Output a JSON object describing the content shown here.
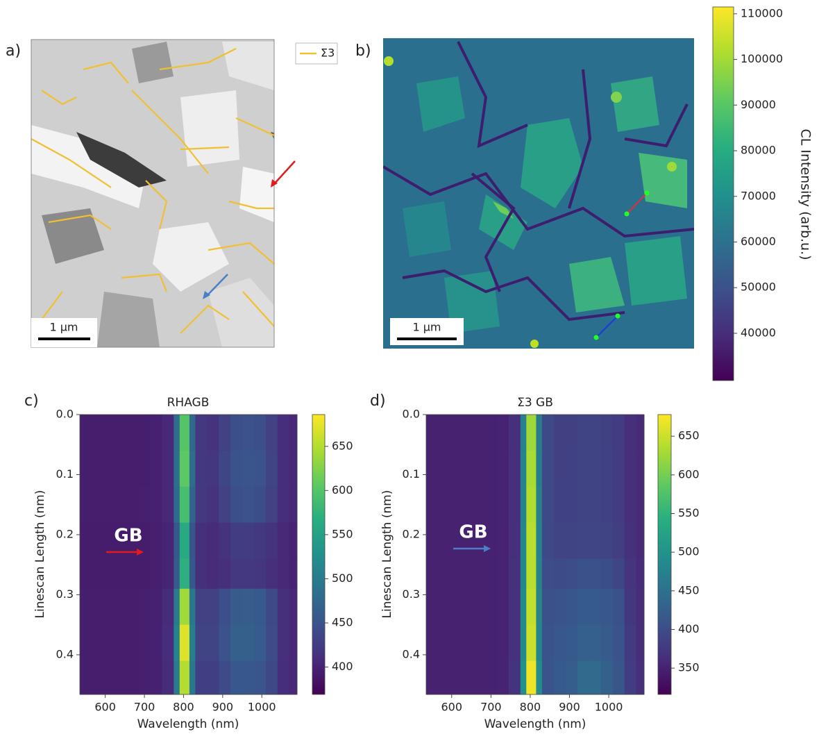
{
  "chart_data": [
    {
      "type": "image",
      "panel": "a)",
      "legend": [
        {
          "name": "Σ3",
          "color": "#f0c030"
        }
      ],
      "scale_bar": "1 µm"
    },
    {
      "type": "image",
      "panel": "b)",
      "scale_bar": "1 µm",
      "colorbar": {
        "label": "CL Intensity (arb.u.)",
        "colormap": "viridis",
        "lim": [
          29650,
          111500
        ],
        "ticks": [
          40000,
          50000,
          60000,
          70000,
          80000,
          90000,
          100000,
          110000
        ]
      }
    },
    {
      "type": "heatmap",
      "panel": "c)",
      "title": "RHAGB",
      "x_label": "Wavelength (nm)",
      "y_label": "Linescan Length (nm)",
      "xlim": [
        535,
        1090
      ],
      "xticks": [
        600,
        700,
        800,
        900,
        1000
      ],
      "ylim": [
        0,
        0.466
      ],
      "invert_y": true,
      "yticks": [
        {
          "value": 0,
          "label": "0.0"
        },
        0.1,
        0.2,
        0.3,
        0.4
      ],
      "x_edges": [
        535,
        565,
        595,
        625,
        655,
        685,
        715,
        745,
        775,
        790,
        815,
        830,
        860,
        890,
        920,
        950,
        980,
        1010,
        1040,
        1070,
        1090
      ],
      "y_edges": [
        0,
        0.06,
        0.12,
        0.18,
        0.24,
        0.29,
        0.35,
        0.41,
        0.466
      ],
      "z": [
        [
          395,
          395,
          395,
          395,
          395,
          395,
          398,
          405,
          480,
          600,
          475,
          420,
          415,
          430,
          445,
          448,
          445,
          430,
          410,
          405
        ],
        [
          395,
          395,
          395,
          395,
          395,
          395,
          398,
          405,
          485,
          605,
          480,
          420,
          418,
          435,
          450,
          452,
          448,
          432,
          410,
          405
        ],
        [
          395,
          395,
          395,
          395,
          395,
          396,
          398,
          405,
          478,
          590,
          470,
          420,
          415,
          430,
          445,
          448,
          444,
          430,
          410,
          405
        ],
        [
          393,
          393,
          393,
          393,
          393,
          394,
          396,
          402,
          455,
          560,
          450,
          412,
          408,
          415,
          425,
          425,
          422,
          415,
          405,
          400
        ],
        [
          393,
          393,
          393,
          393,
          393,
          394,
          396,
          402,
          460,
          570,
          455,
          412,
          408,
          412,
          420,
          420,
          418,
          412,
          405,
          400
        ],
        [
          395,
          395,
          395,
          395,
          395,
          396,
          398,
          408,
          500,
          640,
          495,
          430,
          430,
          445,
          460,
          462,
          458,
          440,
          412,
          405
        ],
        [
          395,
          395,
          395,
          395,
          395,
          396,
          398,
          410,
          510,
          670,
          505,
          432,
          432,
          448,
          465,
          465,
          460,
          442,
          412,
          405
        ],
        [
          395,
          395,
          395,
          395,
          395,
          396,
          398,
          408,
          500,
          650,
          495,
          428,
          428,
          442,
          455,
          456,
          452,
          438,
          410,
          405
        ]
      ],
      "colorbar": {
        "colormap": "viridis",
        "lim": [
          369,
          686
        ],
        "ticks": [
          400,
          450,
          500,
          550,
          600,
          650
        ]
      },
      "annotation": {
        "text": "GB",
        "arrow_color": "#e31a1c"
      }
    },
    {
      "type": "heatmap",
      "panel": "d)",
      "title": "Σ3 GB",
      "x_label": "Wavelength (nm)",
      "y_label": "Linescan Length (nm)",
      "xlim": [
        535,
        1090
      ],
      "xticks": [
        600,
        700,
        800,
        900,
        1000
      ],
      "ylim": [
        0,
        0.466
      ],
      "invert_y": true,
      "yticks": [
        {
          "value": 0,
          "label": "0.0"
        },
        0.1,
        0.2,
        0.3,
        0.4
      ],
      "x_edges": [
        535,
        565,
        595,
        625,
        655,
        685,
        715,
        745,
        775,
        790,
        815,
        830,
        860,
        890,
        920,
        950,
        980,
        1010,
        1040,
        1070,
        1090
      ],
      "y_edges": [
        0,
        0.06,
        0.12,
        0.18,
        0.24,
        0.29,
        0.35,
        0.41,
        0.466
      ],
      "z": [
        [
          350,
          350,
          350,
          350,
          350,
          350,
          352,
          365,
          470,
          625,
          465,
          395,
          385,
          385,
          388,
          388,
          385,
          380,
          365,
          358
        ],
        [
          350,
          350,
          350,
          350,
          350,
          350,
          352,
          365,
          475,
          630,
          468,
          395,
          385,
          386,
          388,
          388,
          386,
          380,
          365,
          358
        ],
        [
          350,
          350,
          350,
          350,
          350,
          350,
          352,
          365,
          475,
          635,
          470,
          395,
          386,
          386,
          388,
          388,
          386,
          380,
          365,
          358
        ],
        [
          350,
          350,
          350,
          350,
          350,
          350,
          352,
          365,
          478,
          640,
          472,
          396,
          388,
          388,
          390,
          390,
          388,
          382,
          366,
          358
        ],
        [
          350,
          350,
          350,
          350,
          350,
          350,
          352,
          366,
          480,
          640,
          475,
          400,
          398,
          400,
          405,
          405,
          402,
          392,
          370,
          360
        ],
        [
          350,
          350,
          350,
          350,
          350,
          350,
          352,
          366,
          485,
          645,
          478,
          405,
          410,
          412,
          418,
          418,
          415,
          405,
          375,
          362
        ],
        [
          350,
          350,
          350,
          350,
          350,
          350,
          352,
          366,
          485,
          650,
          480,
          408,
          415,
          418,
          425,
          425,
          420,
          410,
          378,
          362
        ],
        [
          350,
          350,
          350,
          350,
          350,
          350,
          352,
          368,
          495,
          670,
          490,
          410,
          418,
          422,
          440,
          440,
          428,
          412,
          380,
          364
        ]
      ],
      "colorbar": {
        "colormap": "viridis",
        "lim": [
          316,
          678
        ],
        "ticks": [
          350,
          400,
          450,
          500,
          550,
          600,
          650
        ]
      },
      "annotation": {
        "text": "GB",
        "arrow_color": "#4a7fc8"
      }
    }
  ]
}
